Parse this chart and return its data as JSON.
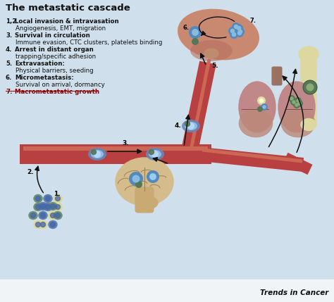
{
  "title": "The metastatic cascade",
  "background_color": "#cfe0ec",
  "white_strip_color": "#e8f0f5",
  "legend_items": [
    {
      "nums": "1,2.",
      "bold": "Local invasion & intravasation",
      "plain": "Angiogenesis, EMT, migration"
    },
    {
      "nums": "3.",
      "bold": "Survival in circulation",
      "plain": "Immune evasion, CTC clusters, platelets binding"
    },
    {
      "nums": "4.",
      "bold": "Arrest in distant organ",
      "plain": "trapping/specific adhesion"
    },
    {
      "nums": "5.",
      "bold": "Extravasation:",
      "plain": "Physical barriers, seeding"
    },
    {
      "nums": "6.",
      "bold": "Micrometastasis:",
      "plain": "Survival on arrival, dormancy"
    },
    {
      "nums": "7.",
      "bold": "Macrometastatic growth",
      "plain": "",
      "red": true
    }
  ],
  "brand": "Trends in Cancer",
  "vessel_color": "#b84040",
  "vessel_highlight": "#cc6655",
  "liver_color": "#c98870",
  "liver_dark": "#b87060",
  "liver_outline": "#8B5040",
  "bone_color": "#ddd8a0",
  "bone_outline": "#aa9966",
  "lung_color": "#c08888",
  "lung_dark": "#b07070",
  "lung_outline": "#7a5050",
  "lung_inner": "#d4a090",
  "brain_color": "#d4bc8c",
  "brain_dark": "#c0a070",
  "brain_outline": "#8a7040",
  "tumor_blue": "#5588bb",
  "tumor_blue_light": "#88bbdd",
  "tumor_green": "#557755",
  "tumor_green_light": "#88aa77",
  "tumor_yellow": "#eeee88",
  "tumor_cluster_yellow": "#e0d88a",
  "tumor_cluster_blue": "#5577aa",
  "tumor_cluster_green": "#668866"
}
